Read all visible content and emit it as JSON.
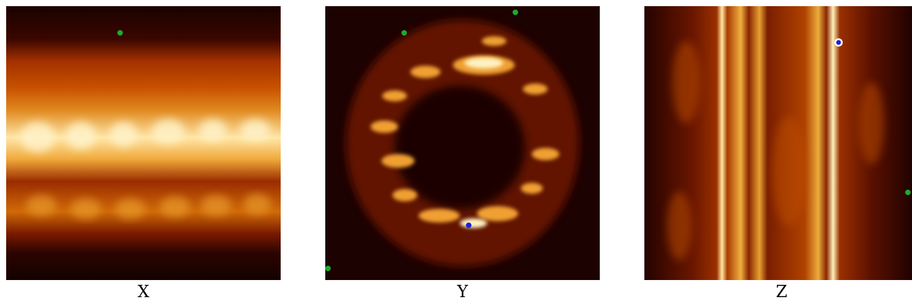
{
  "panels": [
    {
      "label": "X"
    },
    {
      "label": "Y"
    },
    {
      "label": "Z"
    }
  ]
}
